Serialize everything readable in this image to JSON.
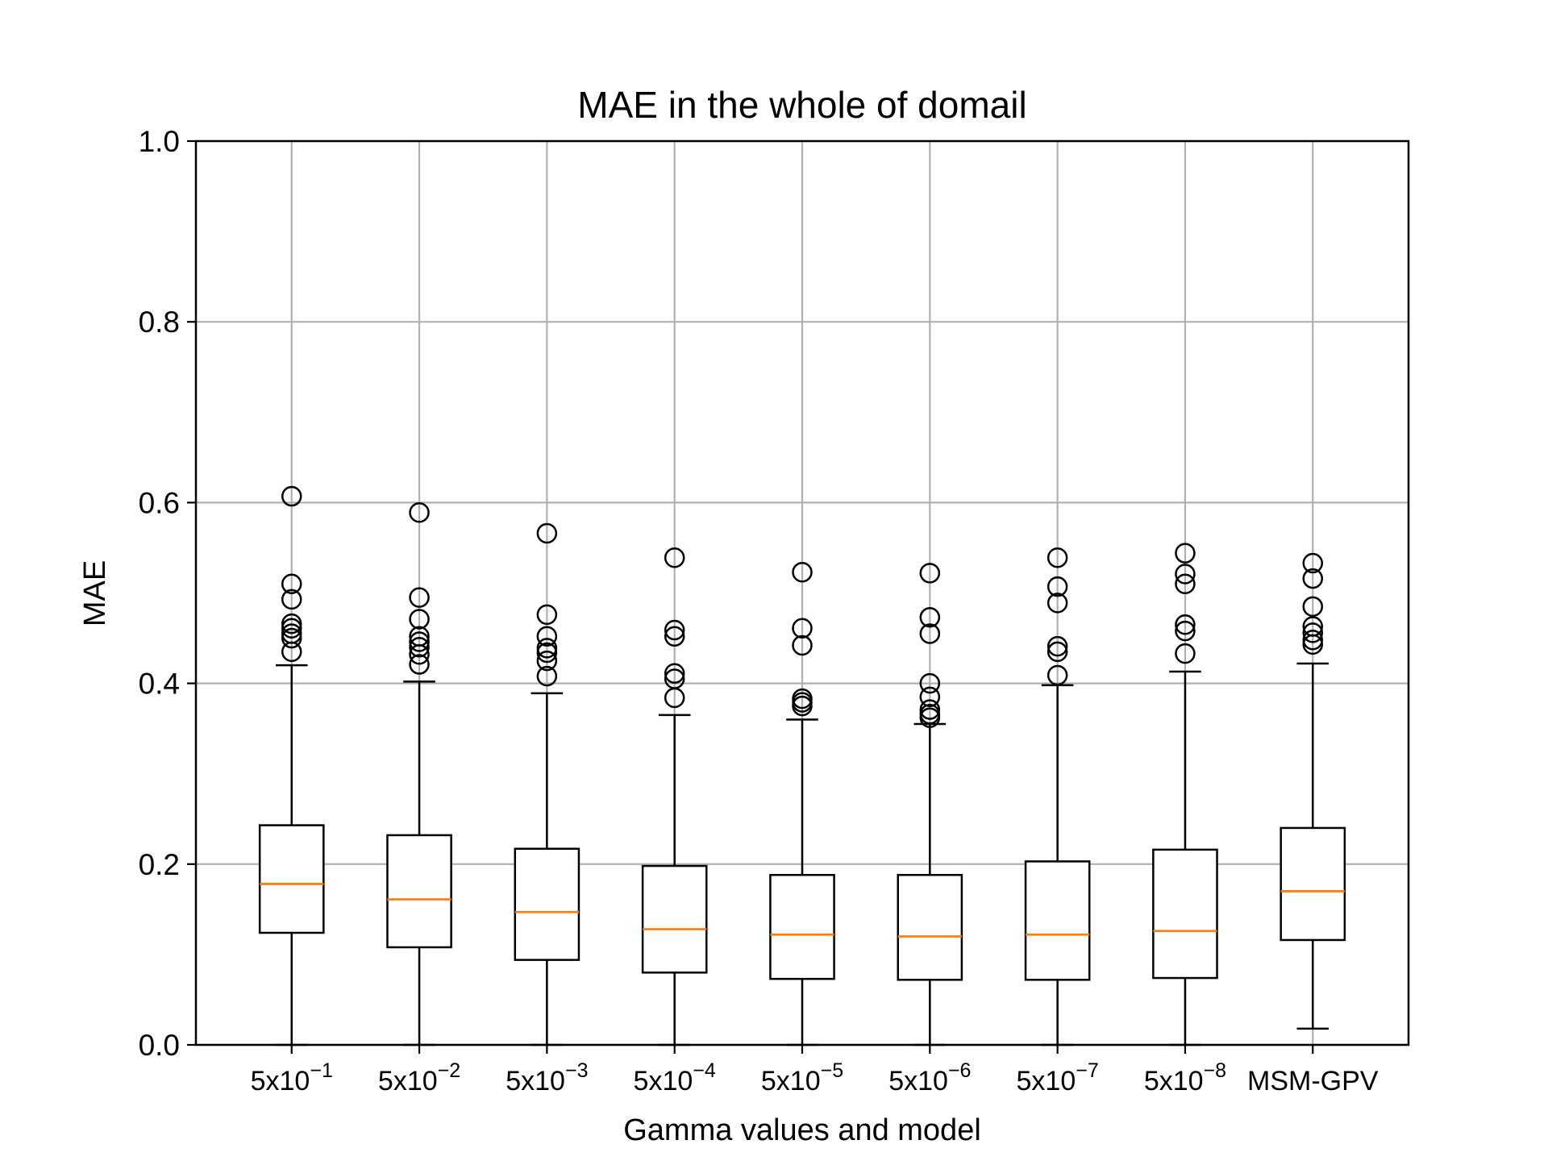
{
  "chart_data": {
    "type": "boxplot",
    "title": "MAE in the whole of domail",
    "xlabel": "Gamma values and model",
    "ylabel": "MAE",
    "ylim": [
      0.0,
      1.0
    ],
    "yticks": [
      "0.0",
      "0.2",
      "0.4",
      "0.6",
      "0.8",
      "1.0"
    ],
    "ytick_values": [
      0.0,
      0.2,
      0.4,
      0.6,
      0.8,
      1.0
    ],
    "grid": true,
    "categories": [
      {
        "base": "5x10",
        "exp": "−1"
      },
      {
        "base": "5x10",
        "exp": "−2"
      },
      {
        "base": "5x10",
        "exp": "−3"
      },
      {
        "base": "5x10",
        "exp": "−4"
      },
      {
        "base": "5x10",
        "exp": "−5"
      },
      {
        "base": "5x10",
        "exp": "−6"
      },
      {
        "base": "5x10",
        "exp": "−7"
      },
      {
        "base": "5x10",
        "exp": "−8"
      },
      {
        "base": "MSM-GPV",
        "exp": ""
      }
    ],
    "boxes": [
      {
        "whislo": 0.0,
        "q1": 0.124,
        "median": 0.178,
        "q3": 0.243,
        "whishi": 0.42,
        "fliers": [
          0.607,
          0.51,
          0.493,
          0.466,
          0.461,
          0.455,
          0.45,
          0.435
        ]
      },
      {
        "whislo": 0.0,
        "q1": 0.108,
        "median": 0.161,
        "q3": 0.232,
        "whishi": 0.402,
        "fliers": [
          0.589,
          0.495,
          0.471,
          0.452,
          0.446,
          0.44,
          0.432,
          0.421
        ]
      },
      {
        "whislo": 0.0,
        "q1": 0.094,
        "median": 0.147,
        "q3": 0.217,
        "whishi": 0.389,
        "fliers": [
          0.566,
          0.476,
          0.452,
          0.439,
          0.434,
          0.425,
          0.408
        ]
      },
      {
        "whislo": 0.0,
        "q1": 0.08,
        "median": 0.128,
        "q3": 0.198,
        "whishi": 0.365,
        "fliers": [
          0.539,
          0.459,
          0.452,
          0.411,
          0.405,
          0.384
        ]
      },
      {
        "whislo": 0.0,
        "q1": 0.073,
        "median": 0.122,
        "q3": 0.188,
        "whishi": 0.36,
        "fliers": [
          0.523,
          0.461,
          0.442,
          0.383,
          0.379,
          0.375
        ]
      },
      {
        "whislo": 0.0,
        "q1": 0.072,
        "median": 0.12,
        "q3": 0.188,
        "whishi": 0.355,
        "fliers": [
          0.522,
          0.473,
          0.455,
          0.4,
          0.385,
          0.371,
          0.366,
          0.362
        ]
      },
      {
        "whislo": 0.0,
        "q1": 0.072,
        "median": 0.122,
        "q3": 0.203,
        "whishi": 0.398,
        "fliers": [
          0.539,
          0.507,
          0.489,
          0.441,
          0.435,
          0.409
        ]
      },
      {
        "whislo": 0.0,
        "q1": 0.074,
        "median": 0.126,
        "q3": 0.216,
        "whishi": 0.413,
        "fliers": [
          0.544,
          0.521,
          0.51,
          0.465,
          0.458,
          0.433
        ]
      },
      {
        "whislo": 0.018,
        "q1": 0.116,
        "median": 0.17,
        "q3": 0.24,
        "whishi": 0.422,
        "fliers": [
          0.533,
          0.516,
          0.485,
          0.463,
          0.456,
          0.448,
          0.443
        ]
      }
    ],
    "colors": {
      "box": "#000000",
      "median": "#ff7f0e",
      "grid": "#b0b0b0",
      "background": "#ffffff"
    }
  }
}
